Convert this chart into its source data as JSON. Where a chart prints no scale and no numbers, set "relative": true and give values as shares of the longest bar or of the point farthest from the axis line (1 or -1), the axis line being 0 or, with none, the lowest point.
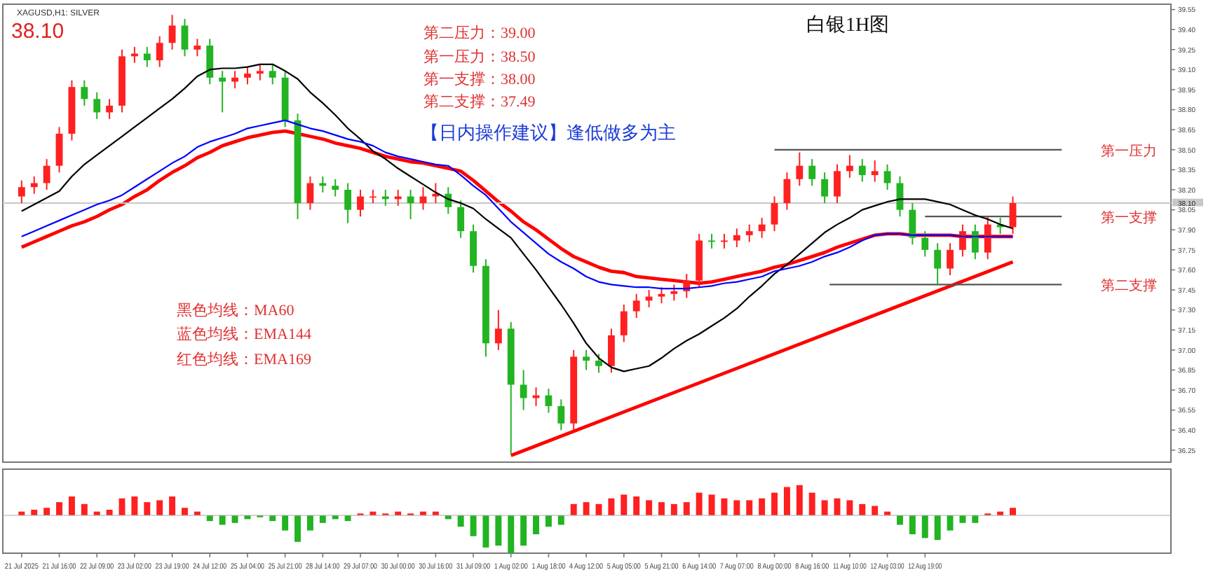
{
  "chart_data": [
    {
      "type": "candlestick",
      "title": "白银1H图",
      "categories": [
        null,
        null,
        null,
        null,
        null,
        null,
        null,
        null,
        null,
        null,
        null,
        null,
        null,
        null,
        null,
        null,
        null,
        null,
        null,
        null,
        null,
        null,
        null,
        null,
        null,
        null,
        null,
        null,
        null,
        null,
        null,
        null,
        null,
        null,
        null,
        null,
        null,
        null,
        null,
        null,
        null,
        null,
        null,
        null,
        null,
        null,
        null,
        null,
        null,
        null,
        null,
        null,
        null,
        null,
        null,
        null,
        null,
        null,
        null,
        null,
        null,
        null,
        null,
        null,
        null,
        null,
        null,
        null,
        null,
        null,
        null,
        null,
        null,
        null,
        null,
        null,
        null,
        null,
        null,
        null
      ],
      "ohlc": [
        [
          38.15,
          38.27,
          38.1,
          38.22
        ],
        [
          38.22,
          38.3,
          38.17,
          38.25
        ],
        [
          38.25,
          38.43,
          38.2,
          38.38
        ],
        [
          38.38,
          38.67,
          38.33,
          38.62
        ],
        [
          38.62,
          39.02,
          38.57,
          38.97
        ],
        [
          38.97,
          39.02,
          38.83,
          38.88
        ],
        [
          38.88,
          38.93,
          38.73,
          38.78
        ],
        [
          38.78,
          38.88,
          38.73,
          38.83
        ],
        [
          38.83,
          39.25,
          38.78,
          39.2
        ],
        [
          39.2,
          39.27,
          39.15,
          39.22
        ],
        [
          39.22,
          39.27,
          39.12,
          39.17
        ],
        [
          39.17,
          39.35,
          39.12,
          39.3
        ],
        [
          39.3,
          39.51,
          39.25,
          39.43
        ],
        [
          39.43,
          39.48,
          39.2,
          39.25
        ],
        [
          39.25,
          39.33,
          39.2,
          39.28
        ],
        [
          39.28,
          39.33,
          38.99,
          39.04
        ],
        [
          39.04,
          39.09,
          38.78,
          39.01
        ],
        [
          39.01,
          39.09,
          38.96,
          39.04
        ],
        [
          39.04,
          39.12,
          38.99,
          39.07
        ],
        [
          39.07,
          39.14,
          39.02,
          39.09
        ],
        [
          39.09,
          39.14,
          38.99,
          39.04
        ],
        [
          39.04,
          39.09,
          38.67,
          38.72
        ],
        [
          38.72,
          38.77,
          37.98,
          38.1
        ],
        [
          38.1,
          38.3,
          38.05,
          38.25
        ],
        [
          38.25,
          38.3,
          38.18,
          38.23
        ],
        [
          38.23,
          38.28,
          38.15,
          38.2
        ],
        [
          38.2,
          38.25,
          37.95,
          38.05
        ],
        [
          38.05,
          38.2,
          38.0,
          38.15
        ],
        [
          38.15,
          38.2,
          38.1,
          38.15
        ],
        [
          38.15,
          38.2,
          38.08,
          38.13
        ],
        [
          38.13,
          38.2,
          38.08,
          38.15
        ],
        [
          38.15,
          38.2,
          37.98,
          38.1
        ],
        [
          38.1,
          38.22,
          38.05,
          38.15
        ],
        [
          38.15,
          38.25,
          38.1,
          38.17
        ],
        [
          38.17,
          38.22,
          38.02,
          38.07
        ],
        [
          38.07,
          38.12,
          37.84,
          37.89
        ],
        [
          37.89,
          37.94,
          37.58,
          37.63
        ],
        [
          37.63,
          37.68,
          36.95,
          37.05
        ],
        [
          37.05,
          37.3,
          37.0,
          37.16
        ],
        [
          37.16,
          37.21,
          36.22,
          36.74
        ],
        [
          36.74,
          36.85,
          36.55,
          36.64
        ],
        [
          36.64,
          36.72,
          36.58,
          36.66
        ],
        [
          36.66,
          36.71,
          36.53,
          36.58
        ],
        [
          36.58,
          36.63,
          36.4,
          36.45
        ],
        [
          36.45,
          37.0,
          36.4,
          36.95
        ],
        [
          36.95,
          37.0,
          36.85,
          36.92
        ],
        [
          36.92,
          36.97,
          36.83,
          36.88
        ],
        [
          36.88,
          37.16,
          36.83,
          37.11
        ],
        [
          37.11,
          37.34,
          37.06,
          37.29
        ],
        [
          37.29,
          37.42,
          37.24,
          37.37
        ],
        [
          37.37,
          37.45,
          37.32,
          37.4
        ],
        [
          37.4,
          37.47,
          37.35,
          37.42
        ],
        [
          37.42,
          37.49,
          37.37,
          37.44
        ],
        [
          37.44,
          37.57,
          37.39,
          37.52
        ],
        [
          37.52,
          37.87,
          37.47,
          37.82
        ],
        [
          37.82,
          37.87,
          37.76,
          37.81
        ],
        [
          37.81,
          37.87,
          37.76,
          37.82
        ],
        [
          37.82,
          37.91,
          37.77,
          37.86
        ],
        [
          37.86,
          37.94,
          37.81,
          37.89
        ],
        [
          37.89,
          37.99,
          37.84,
          37.94
        ],
        [
          37.94,
          38.15,
          37.89,
          38.1
        ],
        [
          38.1,
          38.33,
          38.05,
          38.28
        ],
        [
          38.28,
          38.48,
          38.23,
          38.38
        ],
        [
          38.38,
          38.43,
          38.23,
          38.28
        ],
        [
          38.28,
          38.33,
          38.1,
          38.15
        ],
        [
          38.15,
          38.39,
          38.1,
          38.34
        ],
        [
          38.34,
          38.46,
          38.29,
          38.38
        ],
        [
          38.38,
          38.43,
          38.26,
          38.31
        ],
        [
          38.31,
          38.42,
          38.26,
          38.34
        ],
        [
          38.34,
          38.39,
          38.2,
          38.25
        ],
        [
          38.25,
          38.3,
          38.0,
          38.05
        ],
        [
          38.05,
          38.1,
          37.79,
          37.84
        ],
        [
          37.84,
          37.89,
          37.7,
          37.75
        ],
        [
          37.75,
          37.8,
          37.49,
          37.61
        ],
        [
          37.61,
          37.8,
          37.56,
          37.75
        ],
        [
          37.75,
          37.94,
          37.7,
          37.89
        ],
        [
          37.89,
          37.94,
          37.68,
          37.73
        ],
        [
          37.73,
          38.0,
          37.68,
          37.94
        ],
        [
          37.94,
          37.99,
          37.87,
          37.92
        ],
        [
          37.92,
          38.15,
          37.87,
          38.1
        ]
      ],
      "colors": [
        "#ff2020",
        "#ff2020",
        "#ff2020",
        "#ff2020",
        "#ff2020",
        "#22b422",
        "#22b422",
        "#ff2020",
        "#ff2020",
        "#ff2020",
        "#22b422",
        "#ff2020",
        "#ff2020",
        "#22b422",
        "#ff2020",
        "#22b422",
        "#22b422",
        "#ff2020",
        "#ff2020",
        "#ff2020",
        "#22b422",
        "#22b422",
        "#22b422",
        "#ff2020",
        "#22b422",
        "#22b422",
        "#22b422",
        "#ff2020",
        "#ff2020",
        "#22b422",
        "#ff2020",
        "#22b422",
        "#ff2020",
        "#ff2020",
        "#22b422",
        "#22b422",
        "#22b422",
        "#22b422",
        "#ff2020",
        "#22b422",
        "#22b422",
        "#ff2020",
        "#22b422",
        "#22b422",
        "#ff2020",
        "#22b422",
        "#22b422",
        "#ff2020",
        "#ff2020",
        "#ff2020",
        "#ff2020",
        "#ff2020",
        "#ff2020",
        "#ff2020",
        "#ff2020",
        "#22b422",
        "#ff2020",
        "#ff2020",
        "#ff2020",
        "#ff2020",
        "#ff2020",
        "#ff2020",
        "#ff2020",
        "#22b422",
        "#22b422",
        "#ff2020",
        "#ff2020",
        "#22b422",
        "#ff2020",
        "#22b422",
        "#22b422",
        "#22b422",
        "#22b422",
        "#22b422",
        "#ff2020",
        "#ff2020",
        "#22b422",
        "#ff2020",
        "#22b422",
        "#ff2020"
      ],
      "series": [
        {
          "type": "line",
          "color": "#000000",
          "values": [
            38.04,
            38.09,
            38.14,
            38.19,
            38.3,
            38.39,
            38.46,
            38.53,
            38.6,
            38.67,
            38.74,
            38.81,
            38.88,
            38.96,
            39.05,
            39.1,
            39.11,
            39.11,
            39.12,
            39.14,
            39.14,
            39.09,
            39.03,
            38.93,
            38.85,
            38.76,
            38.66,
            38.58,
            38.49,
            38.43,
            38.36,
            38.3,
            38.24,
            38.18,
            38.13,
            38.1,
            38.06,
            37.98,
            37.91,
            37.84,
            37.72,
            37.6,
            37.47,
            37.34,
            37.2,
            37.05,
            36.94,
            36.87,
            36.84,
            36.86,
            36.88,
            36.94,
            37.01,
            37.07,
            37.12,
            37.18,
            37.24,
            37.31,
            37.4,
            37.48,
            37.57,
            37.64,
            37.72,
            37.8,
            37.88,
            37.94,
            37.99,
            38.05,
            38.08,
            38.11,
            38.13,
            38.13,
            38.13,
            38.11,
            38.09,
            38.05,
            38.01,
            37.98,
            37.94,
            37.91
          ]
        },
        {
          "type": "line",
          "color": "#0000ff",
          "values": [
            37.85,
            37.89,
            37.93,
            37.97,
            38.01,
            38.05,
            38.09,
            38.12,
            38.16,
            38.22,
            38.28,
            38.34,
            38.4,
            38.45,
            38.52,
            38.56,
            38.59,
            38.62,
            38.66,
            38.68,
            38.7,
            38.72,
            38.69,
            38.66,
            38.64,
            38.61,
            38.58,
            38.56,
            38.53,
            38.48,
            38.45,
            38.43,
            38.41,
            38.39,
            38.38,
            38.31,
            38.23,
            38.16,
            38.06,
            37.96,
            37.88,
            37.8,
            37.72,
            37.66,
            37.61,
            37.55,
            37.51,
            37.49,
            37.48,
            37.47,
            37.47,
            37.46,
            37.46,
            37.46,
            37.47,
            37.48,
            37.5,
            37.51,
            37.53,
            37.55,
            37.59,
            37.61,
            37.63,
            37.66,
            37.7,
            37.73,
            37.77,
            37.82,
            37.86,
            37.87,
            37.87,
            37.86,
            37.86,
            37.86,
            37.86,
            37.85,
            37.85,
            37.85,
            37.85,
            37.85
          ]
        },
        {
          "type": "line",
          "color": "#ff0000",
          "values": [
            37.77,
            37.81,
            37.85,
            37.89,
            37.93,
            37.96,
            38.0,
            38.05,
            38.09,
            38.15,
            38.2,
            38.27,
            38.33,
            38.38,
            38.44,
            38.48,
            38.53,
            38.56,
            38.59,
            38.61,
            38.63,
            38.64,
            38.62,
            38.6,
            38.58,
            38.55,
            38.53,
            38.51,
            38.48,
            38.45,
            38.43,
            38.41,
            38.4,
            38.38,
            38.36,
            38.34,
            38.27,
            38.19,
            38.11,
            38.04,
            37.96,
            37.9,
            37.83,
            37.76,
            37.7,
            37.66,
            37.62,
            37.59,
            37.58,
            37.55,
            37.54,
            37.53,
            37.52,
            37.51,
            37.5,
            37.51,
            37.53,
            37.55,
            37.57,
            37.59,
            37.62,
            37.64,
            37.67,
            37.7,
            37.73,
            37.77,
            37.8,
            37.83,
            37.86,
            37.87,
            37.87,
            37.86,
            37.86,
            37.86,
            37.86,
            37.85,
            37.85,
            37.85,
            37.85,
            37.85
          ]
        },
        {
          "type": "line",
          "color": "#ff0000",
          "values": [
            null,
            null,
            null,
            null,
            null,
            null,
            null,
            null,
            null,
            null,
            null,
            null,
            null,
            null,
            null,
            null,
            null,
            null,
            null,
            null,
            null,
            null,
            null,
            null,
            null,
            null,
            null,
            null,
            null,
            null,
            null,
            null,
            null,
            null,
            null,
            null,
            null,
            null,
            null,
            36.21,
            null,
            null,
            null,
            null,
            null,
            null,
            null,
            null,
            null,
            null,
            null,
            null,
            null,
            null,
            null,
            null,
            null,
            null,
            null,
            null,
            null,
            null,
            null,
            null,
            null,
            null,
            null,
            null,
            null,
            null,
            null,
            null,
            null,
            null,
            null,
            null,
            null,
            null,
            null,
            37.66
          ]
        }
      ],
      "ylim": [
        36.16,
        39.59
      ],
      "yticks": [
        39.55,
        {
          "value": 39.4,
          "label": "39.40"
        },
        39.25,
        {
          "value": 39.1,
          "label": "39.10"
        },
        38.95,
        {
          "value": 38.8,
          "label": "38.80"
        },
        38.65,
        {
          "value": 38.5,
          "label": "38.50"
        },
        38.35,
        {
          "value": 38.2,
          "label": "38.20"
        },
        38.05,
        {
          "value": 37.9,
          "label": "37.90"
        },
        37.75,
        {
          "value": 37.6,
          "label": "37.60"
        },
        37.45,
        {
          "value": 37.3,
          "label": "37.30"
        },
        37.15,
        {
          "value": 37.0,
          "label": "37.00"
        },
        36.85,
        {
          "value": 36.7,
          "label": "36.70"
        },
        36.55,
        {
          "value": 36.4,
          "label": "36.40"
        },
        36.25
      ],
      "ref_lines": [
        {
          "axis": "y",
          "value": 38.5,
          "label": "第一压力",
          "color": "#555555"
        },
        {
          "axis": "y",
          "value": 38.0,
          "label": "第一支撑",
          "color": "#555555"
        },
        {
          "axis": "y",
          "value": 37.49,
          "label": "第二支撑",
          "color": "#555555"
        },
        {
          "axis": "y",
          "value": 38.1,
          "label": "38.10",
          "color": "#c8c8c8"
        }
      ],
      "annotations": [
        "XAGUSD,H1: SILVER",
        "38.10",
        "第二压力：39.00",
        "第一压力：38.50",
        "第一支撑：38.00",
        "第二支撑：37.49",
        "【日内操作建议】逢低做多为主",
        "黑色均线：MA60",
        "蓝色均线：EMA144",
        "红色均线：EMA169"
      ],
      "tick_labels": "y"
    },
    {
      "type": "bar",
      "relative": true,
      "tick_labels": "x",
      "categories": [
        "21 Jul 2025",
        null,
        null,
        "21 Jul 16:00",
        null,
        null,
        "22 Jul 09:00",
        null,
        null,
        "23 Jul 02:00",
        null,
        null,
        "23 Jul 19:00",
        null,
        null,
        "24 Jul 12:00",
        null,
        null,
        "25 Jul 04:00",
        null,
        null,
        "25 Jul 21:00",
        null,
        null,
        "28 Jul 14:00",
        null,
        null,
        "29 Jul 07:00",
        null,
        null,
        "30 Jul 00:00",
        null,
        null,
        "30 Jul 16:00",
        null,
        null,
        "31 Jul 09:00",
        null,
        null,
        "1 Aug 02:00",
        null,
        null,
        "1 Aug 18:00",
        null,
        null,
        "4 Aug 12:00",
        null,
        null,
        "5 Aug 05:00",
        null,
        null,
        "5 Aug 21:00",
        null,
        null,
        "6 Aug 14:00",
        null,
        null,
        "7 Aug 07:00",
        null,
        null,
        "8 Aug 00:00",
        null,
        null,
        "8 Aug 16:00",
        null,
        null,
        "11 Aug 10:00",
        null,
        null,
        "12 Aug 03:00",
        null,
        null,
        "12 Aug 19:00",
        null,
        null,
        null,
        null,
        null,
        null,
        null
      ],
      "values": [
        0.1,
        0.15,
        0.2,
        0.35,
        0.5,
        0.3,
        0.1,
        0.15,
        0.45,
        0.5,
        0.35,
        0.4,
        0.5,
        0.2,
        0.1,
        -0.15,
        -0.25,
        -0.2,
        -0.1,
        -0.05,
        -0.15,
        -0.4,
        -0.7,
        -0.4,
        -0.2,
        -0.1,
        -0.15,
        0.05,
        0.1,
        0.05,
        0.1,
        0.05,
        0.1,
        0.1,
        -0.1,
        -0.3,
        -0.55,
        -0.85,
        -0.8,
        -1,
        -0.8,
        -0.5,
        -0.3,
        -0.25,
        0.3,
        0.35,
        0.3,
        0.45,
        0.55,
        0.5,
        0.4,
        0.35,
        0.3,
        0.35,
        0.6,
        0.55,
        0.45,
        0.4,
        0.4,
        0.45,
        0.6,
        0.75,
        0.8,
        0.6,
        0.4,
        0.45,
        0.4,
        0.3,
        0.25,
        0.1,
        -0.25,
        -0.5,
        -0.6,
        -0.65,
        -0.4,
        -0.2,
        -0.2,
        0.05,
        0.1,
        0.2
      ],
      "colors": [
        "#ff2020",
        "#ff2020",
        "#ff2020",
        "#ff2020",
        "#ff2020",
        "#ff2020",
        "#ff2020",
        "#ff2020",
        "#ff2020",
        "#ff2020",
        "#ff2020",
        "#ff2020",
        "#ff2020",
        "#ff2020",
        "#ff2020",
        "#22b422",
        "#22b422",
        "#22b422",
        "#22b422",
        "#22b422",
        "#22b422",
        "#22b422",
        "#22b422",
        "#22b422",
        "#22b422",
        "#22b422",
        "#22b422",
        "#ff2020",
        "#ff2020",
        "#ff2020",
        "#ff2020",
        "#ff2020",
        "#ff2020",
        "#ff2020",
        "#22b422",
        "#22b422",
        "#22b422",
        "#22b422",
        "#22b422",
        "#22b422",
        "#22b422",
        "#22b422",
        "#22b422",
        "#22b422",
        "#ff2020",
        "#ff2020",
        "#ff2020",
        "#ff2020",
        "#ff2020",
        "#ff2020",
        "#ff2020",
        "#ff2020",
        "#ff2020",
        "#ff2020",
        "#ff2020",
        "#ff2020",
        "#ff2020",
        "#ff2020",
        "#ff2020",
        "#ff2020",
        "#ff2020",
        "#ff2020",
        "#ff2020",
        "#ff2020",
        "#ff2020",
        "#ff2020",
        "#ff2020",
        "#ff2020",
        "#ff2020",
        "#ff2020",
        "#22b422",
        "#22b422",
        "#22b422",
        "#22b422",
        "#22b422",
        "#22b422",
        "#22b422",
        "#ff2020",
        "#ff2020",
        "#ff2020"
      ]
    }
  ]
}
